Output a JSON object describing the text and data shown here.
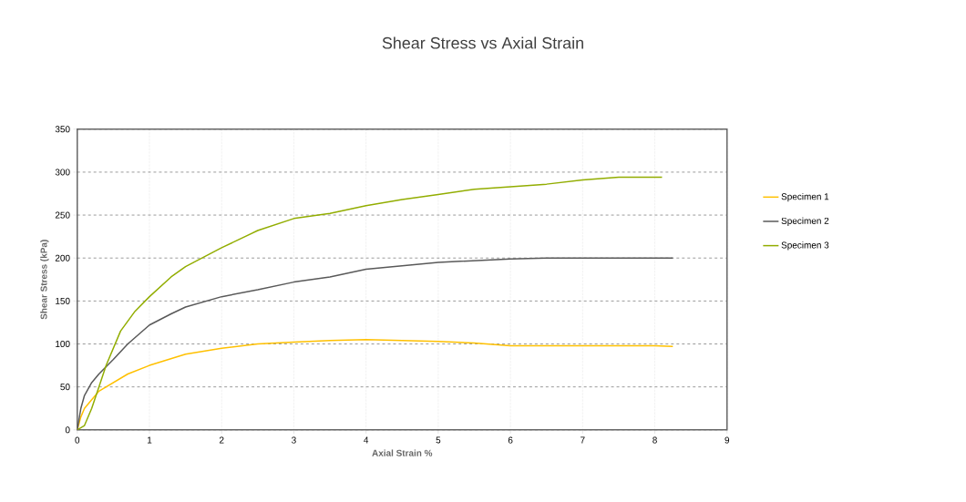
{
  "chart_data": {
    "type": "line",
    "title": "Shear Stress vs Axial Strain",
    "xlabel": "Axial Strain %",
    "ylabel": "Shear Stress (kPa)",
    "xlim": [
      0,
      9
    ],
    "xticks": [
      0,
      1,
      2,
      3,
      4,
      5,
      6,
      7,
      8,
      9
    ],
    "ylim": [
      0,
      350
    ],
    "yticks": [
      0,
      50,
      100,
      150,
      200,
      250,
      300,
      350
    ],
    "grid": true,
    "legend": "right",
    "marker": "none",
    "line_style": "solid",
    "series": [
      {
        "name": "Specimen 1",
        "color": "#ffc000",
        "x": [
          0,
          0.05,
          0.1,
          0.2,
          0.3,
          0.5,
          0.7,
          1,
          1.5,
          2,
          2.5,
          3,
          3.5,
          4,
          4.5,
          5,
          5.5,
          6,
          6.5,
          7,
          7.5,
          8,
          8.25
        ],
        "values": [
          0,
          15,
          25,
          35,
          45,
          55,
          65,
          75,
          88,
          95,
          100,
          102,
          104,
          105,
          104,
          103,
          101,
          98,
          98,
          98,
          98,
          98,
          97
        ]
      },
      {
        "name": "Specimen 2",
        "color": "#595959",
        "x": [
          0,
          0.05,
          0.1,
          0.2,
          0.3,
          0.5,
          0.7,
          1,
          1.3,
          1.5,
          2,
          2.5,
          3,
          3.5,
          4,
          4.5,
          5,
          5.5,
          6,
          6.5,
          7,
          7.5,
          8,
          8.25
        ],
        "values": [
          0,
          25,
          40,
          55,
          65,
          82,
          100,
          122,
          135,
          143,
          155,
          163,
          172,
          178,
          187,
          191,
          195,
          197,
          199,
          200,
          200,
          200,
          200,
          200
        ]
      },
      {
        "name": "Specimen 3",
        "color": "#92ad00",
        "x": [
          0,
          0.1,
          0.2,
          0.3,
          0.4,
          0.5,
          0.6,
          0.8,
          1,
          1.3,
          1.5,
          2,
          2.5,
          3,
          3.5,
          4,
          4.5,
          5,
          5.5,
          6,
          6.5,
          7,
          7.5,
          8,
          8.1
        ],
        "values": [
          0,
          5,
          25,
          50,
          75,
          95,
          115,
          138,
          155,
          178,
          190,
          212,
          232,
          246,
          252,
          261,
          268,
          274,
          280,
          283,
          286,
          291,
          294,
          294,
          294
        ]
      }
    ]
  }
}
